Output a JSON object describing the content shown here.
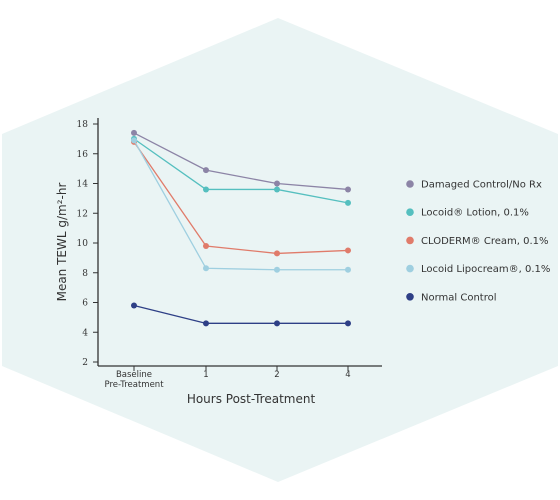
{
  "colors": {
    "background_hex": "#eaf4f4",
    "axis": "#333333"
  },
  "chart_data": {
    "type": "line",
    "title": "",
    "xlabel": "Hours Post-Treatment",
    "ylabel": "Mean TEWL g/m²-hr",
    "categories": [
      "Baseline\nPre-Treatment",
      "1",
      "2",
      "4"
    ],
    "ylim": [
      2,
      18
    ],
    "yticks": [
      2,
      4,
      6,
      8,
      10,
      12,
      14,
      16,
      18
    ],
    "grid": false,
    "legend_position": "right",
    "series": [
      {
        "name": "Damaged Control/No Rx",
        "color": "#8c84a6",
        "values": [
          17.4,
          14.9,
          14.0,
          13.6
        ]
      },
      {
        "name": "Locoid® Lotion, 0.1%",
        "color": "#55bfbf",
        "values": [
          17.0,
          13.6,
          13.6,
          12.7
        ]
      },
      {
        "name": "CLODERM® Cream, 0.1%",
        "color": "#e07b6a",
        "values": [
          16.8,
          9.8,
          9.3,
          9.5
        ]
      },
      {
        "name": "Locoid Lipocream®, 0.1%",
        "color": "#9fcfe0",
        "values": [
          16.9,
          8.3,
          8.2,
          8.2
        ]
      },
      {
        "name": "Normal Control",
        "color": "#2e3f86",
        "values": [
          5.8,
          4.6,
          4.6,
          4.6
        ]
      }
    ]
  }
}
